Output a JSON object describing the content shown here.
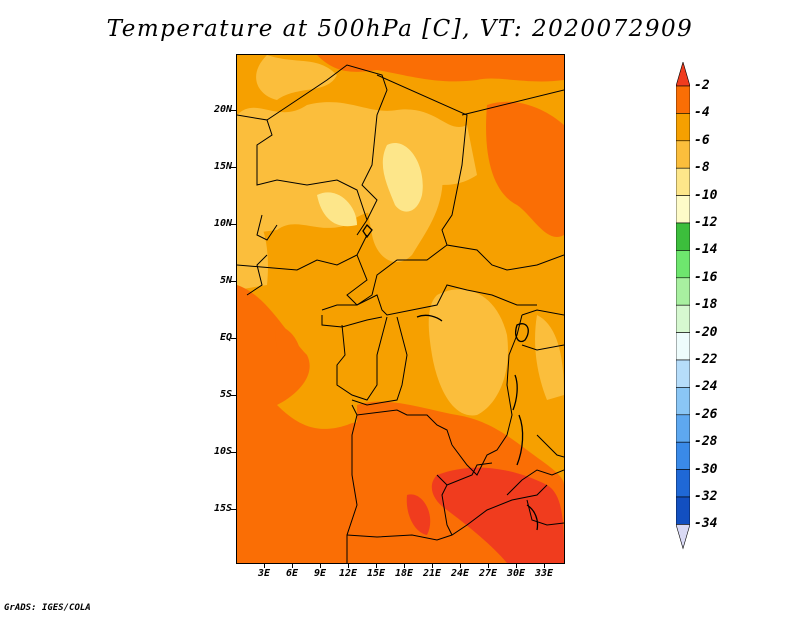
{
  "title": "Temperature at 500hPa [C], VT: 2020072909",
  "credit": "GrADS: IGES/COLA",
  "lat_labels": [
    "20N",
    "15N",
    "10N",
    "5N",
    "EQ",
    "5S",
    "10S",
    "15S"
  ],
  "lon_labels": [
    "3E",
    "6E",
    "9E",
    "12E",
    "15E",
    "18E",
    "21E",
    "24E",
    "27E",
    "30E",
    "33E"
  ],
  "colorbar": {
    "labels": [
      "-2",
      "-4",
      "-6",
      "-8",
      "-10",
      "-12",
      "-14",
      "-16",
      "-18",
      "-20",
      "-22",
      "-24",
      "-26",
      "-28",
      "-30",
      "-32",
      "-34"
    ],
    "colors": [
      "#f03c1e",
      "#fa6e05",
      "#f6a000",
      "#fbbe3c",
      "#fde68a",
      "#fefbc8",
      "#3cbe3c",
      "#6ee66e",
      "#a8f0a0",
      "#d6f8d0",
      "#eefcfc",
      "#b6ddfa",
      "#8ac6f5",
      "#5ea8f0",
      "#3a8ae8",
      "#1f68d6",
      "#124fc0",
      "#0d2f9a",
      "#0a1464",
      "#dadaf5"
    ]
  },
  "map": {
    "region": "Central Africa",
    "variable": "Temperature at 500hPa",
    "units": "C",
    "lat_range": [
      -20,
      24
    ],
    "lon_range": [
      0,
      35
    ]
  }
}
